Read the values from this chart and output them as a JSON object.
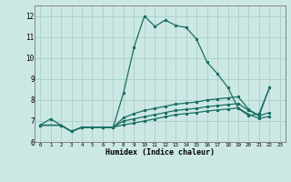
{
  "xlabel": "Humidex (Indice chaleur)",
  "bg_color": "#cce8e4",
  "grid_color": "#aacec8",
  "line_color": "#1a6e64",
  "xlim": [
    -0.5,
    23.5
  ],
  "ylim": [
    6.0,
    12.5
  ],
  "yticks": [
    6,
    7,
    8,
    9,
    10,
    11,
    12
  ],
  "xticks": [
    0,
    1,
    2,
    3,
    4,
    5,
    6,
    7,
    8,
    9,
    10,
    11,
    12,
    13,
    14,
    15,
    16,
    17,
    18,
    19,
    20,
    21,
    22,
    23
  ],
  "line1_x": [
    0,
    1,
    2,
    3,
    4,
    5,
    6,
    7,
    8,
    9,
    10,
    11,
    12,
    13,
    14,
    15,
    16,
    17,
    18,
    19,
    20,
    21,
    22
  ],
  "line1_y": [
    6.8,
    7.1,
    6.8,
    6.5,
    6.7,
    6.7,
    6.7,
    6.7,
    8.35,
    10.5,
    12.0,
    11.5,
    11.8,
    11.55,
    11.45,
    10.9,
    9.8,
    9.25,
    8.6,
    7.6,
    7.25,
    7.35,
    8.6
  ],
  "line2_x": [
    0,
    2,
    3,
    4,
    5,
    6,
    7,
    8,
    9,
    10,
    11,
    12,
    13,
    14,
    15,
    16,
    17,
    18,
    19,
    20,
    21,
    22
  ],
  "line2_y": [
    6.8,
    6.8,
    6.5,
    6.7,
    6.7,
    6.7,
    6.7,
    7.15,
    7.35,
    7.5,
    7.6,
    7.7,
    7.8,
    7.85,
    7.9,
    8.0,
    8.05,
    8.1,
    8.15,
    7.55,
    7.25,
    8.6
  ],
  "line3_x": [
    0,
    2,
    3,
    4,
    5,
    6,
    7,
    8,
    9,
    10,
    11,
    12,
    13,
    14,
    15,
    16,
    17,
    18,
    19,
    20,
    21,
    22
  ],
  "line3_y": [
    6.8,
    6.8,
    6.5,
    6.7,
    6.7,
    6.7,
    6.7,
    7.0,
    7.1,
    7.2,
    7.3,
    7.4,
    7.5,
    7.55,
    7.6,
    7.68,
    7.73,
    7.78,
    7.83,
    7.5,
    7.25,
    7.4
  ],
  "line4_x": [
    0,
    2,
    3,
    4,
    5,
    6,
    7,
    8,
    9,
    10,
    11,
    12,
    13,
    14,
    15,
    16,
    17,
    18,
    19,
    20,
    21,
    22
  ],
  "line4_y": [
    6.8,
    6.8,
    6.5,
    6.7,
    6.7,
    6.7,
    6.7,
    6.82,
    6.9,
    7.0,
    7.1,
    7.2,
    7.3,
    7.35,
    7.4,
    7.47,
    7.52,
    7.57,
    7.62,
    7.32,
    7.12,
    7.22
  ]
}
